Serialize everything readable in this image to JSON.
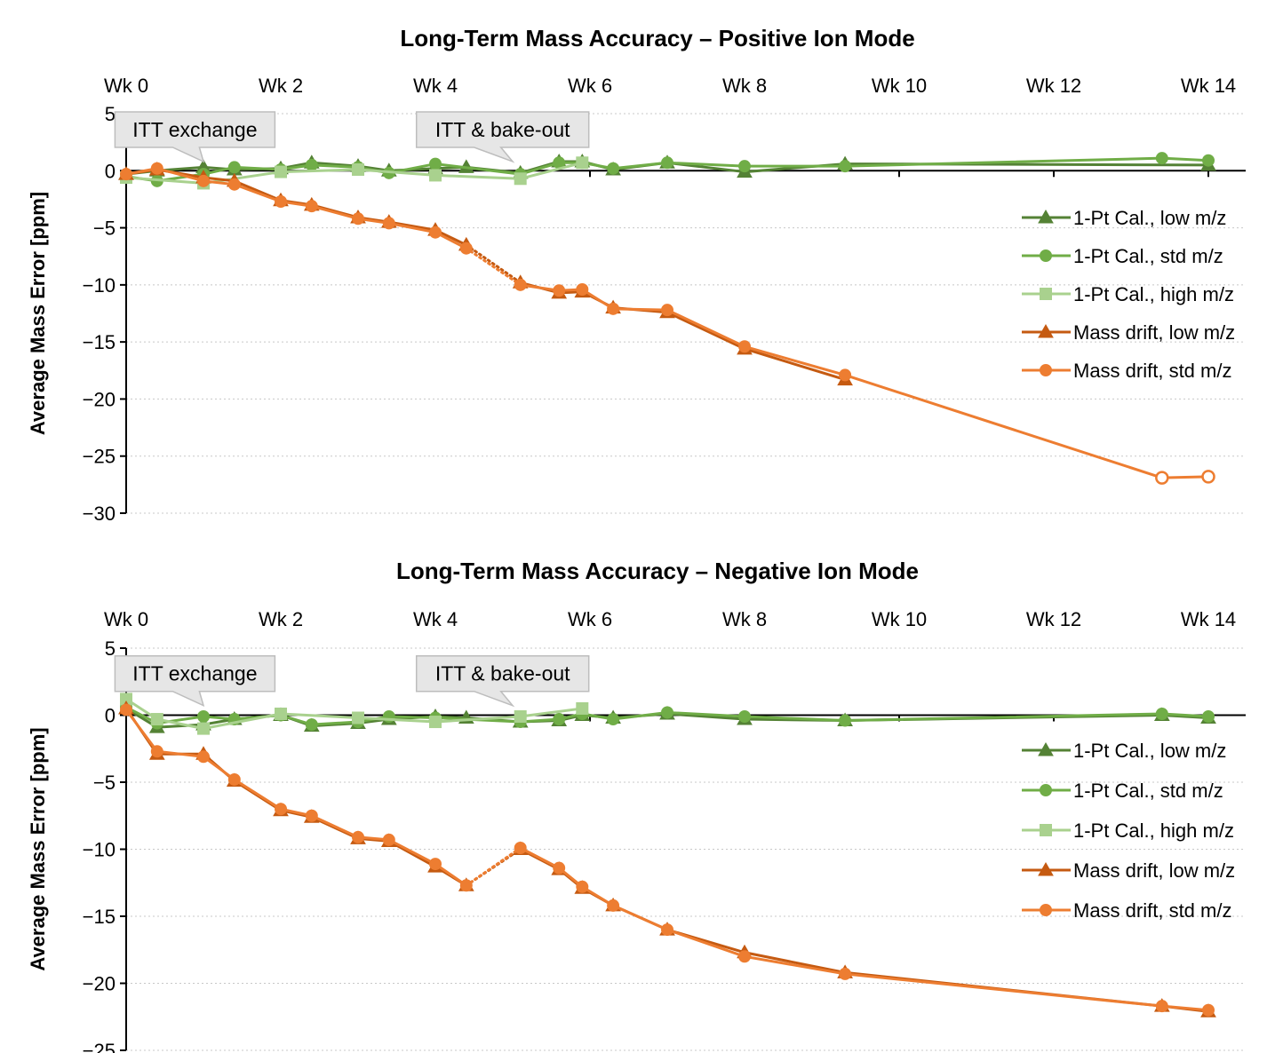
{
  "chart_data": [
    {
      "type": "line",
      "title": "Long-Term Mass Accuracy – Positive Ion Mode",
      "xlabel": "",
      "ylabel": "Average Mass Error [ppm]",
      "xlim": [
        0,
        14.5
      ],
      "ylim": [
        -30,
        5
      ],
      "x_ticks": [
        0,
        2,
        4,
        6,
        8,
        10,
        12,
        14
      ],
      "x_tick_labels": [
        "Wk 0",
        "Wk 2",
        "Wk 4",
        "Wk 6",
        "Wk 8",
        "Wk 10",
        "Wk 12",
        "Wk 14"
      ],
      "y_ticks": [
        5,
        0,
        -5,
        -10,
        -15,
        -20,
        -25,
        -30
      ],
      "y_tick_labels": [
        "5",
        "0",
        "−5",
        "−10",
        "−15",
        "−20",
        "−25",
        "−30"
      ],
      "grid": "horizontal dotted",
      "legend_position": "right",
      "annotations": [
        {
          "text": "ITT exchange",
          "x": 0.2,
          "y": 3.6,
          "pointer_x": 1.0
        },
        {
          "text": "ITT & bake-out",
          "x": 4.1,
          "y": 3.6,
          "pointer_x": 5.0
        }
      ],
      "series": [
        {
          "name": "1-Pt Cal., low m/z",
          "color": "#548235",
          "marker": "triangle",
          "x": [
            0,
            0.4,
            1.0,
            1.4,
            2.0,
            2.4,
            3.0,
            3.4,
            4.0,
            4.4,
            5.1,
            5.6,
            5.9,
            6.3,
            7.0,
            8.0,
            9.3,
            14.0
          ],
          "y": [
            -0.3,
            0.0,
            0.3,
            0.1,
            0.2,
            0.7,
            0.4,
            0.0,
            0.2,
            0.3,
            -0.2,
            0.8,
            0.8,
            0.1,
            0.7,
            -0.1,
            0.6,
            0.5
          ]
        },
        {
          "name": "1-Pt Cal., std m/z",
          "color": "#70AD47",
          "marker": "circle",
          "x": [
            0,
            0.4,
            1.0,
            1.4,
            2.0,
            2.4,
            3.0,
            3.4,
            4.0,
            5.1,
            5.6,
            5.9,
            6.3,
            7.0,
            8.0,
            9.3,
            13.4,
            14.0
          ],
          "y": [
            -0.5,
            -0.9,
            -0.3,
            0.3,
            0.1,
            0.5,
            0.3,
            -0.2,
            0.6,
            -0.3,
            0.7,
            0.7,
            0.2,
            0.7,
            0.4,
            0.4,
            1.1,
            0.9
          ]
        },
        {
          "name": "1-Pt Cal., high m/z",
          "color": "#A9D18E",
          "marker": "square",
          "x": [
            0,
            1.0,
            2.0,
            3.0,
            4.0,
            5.1,
            5.9
          ],
          "y": [
            -0.6,
            -1.1,
            -0.1,
            0.1,
            -0.4,
            -0.7,
            0.7
          ]
        },
        {
          "name": "Mass drift, low m/z",
          "color": "#C55A11",
          "marker": "triangle",
          "x": [
            0,
            0.4,
            1.0,
            1.4,
            2.0,
            2.4,
            3.0,
            3.4,
            4.0,
            4.4,
            5.1,
            5.6,
            5.9,
            6.3,
            7.0,
            8.0,
            9.3
          ],
          "y": [
            -0.3,
            0.1,
            -0.6,
            -0.9,
            -2.6,
            -3.0,
            -4.1,
            -4.5,
            -5.2,
            -6.5,
            -9.8,
            -10.7,
            -10.6,
            -12.0,
            -12.4,
            -15.6,
            -18.3
          ],
          "dotted_gap_after_index": 9
        },
        {
          "name": "Mass drift, std m/z",
          "color": "#ED7D31",
          "marker": "circle",
          "x": [
            0,
            0.4,
            1.0,
            1.4,
            2.0,
            2.4,
            3.0,
            3.4,
            4.0,
            4.4,
            5.1,
            5.6,
            5.9,
            6.3,
            7.0,
            8.0,
            9.3,
            13.4,
            14.0
          ],
          "y": [
            -0.3,
            0.2,
            -0.9,
            -1.2,
            -2.7,
            -3.1,
            -4.2,
            -4.6,
            -5.4,
            -6.8,
            -10.0,
            -10.5,
            -10.4,
            -12.1,
            -12.2,
            -15.4,
            -17.9,
            -26.9,
            -26.8
          ],
          "dotted_gap_after_index": 9,
          "hollow_indices": [
            17,
            18
          ]
        }
      ]
    },
    {
      "type": "line",
      "title": "Long-Term Mass Accuracy – Negative Ion Mode",
      "xlabel": "",
      "ylabel": "Average Mass Error [ppm]",
      "xlim": [
        0,
        14.5
      ],
      "ylim": [
        -25,
        5
      ],
      "x_ticks": [
        0,
        2,
        4,
        6,
        8,
        10,
        12,
        14
      ],
      "x_tick_labels": [
        "Wk 0",
        "Wk 2",
        "Wk 4",
        "Wk 6",
        "Wk 8",
        "Wk 10",
        "Wk 12",
        "Wk 14"
      ],
      "y_ticks": [
        5,
        0,
        -5,
        -10,
        -15,
        -20,
        -25
      ],
      "y_tick_labels": [
        "5",
        "0",
        "−5",
        "−10",
        "−15",
        "−20",
        "−25"
      ],
      "grid": "horizontal dotted",
      "legend_position": "right",
      "annotations": [
        {
          "text": "ITT exchange",
          "x": 0.2,
          "y": 3.1,
          "pointer_x": 1.0
        },
        {
          "text": "ITT & bake-out",
          "x": 4.1,
          "y": 3.1,
          "pointer_x": 5.0
        }
      ],
      "series": [
        {
          "name": "1-Pt Cal., low m/z",
          "color": "#548235",
          "marker": "triangle",
          "x": [
            0,
            0.4,
            1.0,
            1.4,
            2.0,
            2.4,
            3.0,
            3.4,
            4.0,
            4.4,
            5.1,
            5.6,
            5.9,
            6.3,
            7.0,
            8.0,
            9.3,
            13.4,
            14.0
          ],
          "y": [
            0.5,
            -0.9,
            -0.7,
            -0.3,
            0.0,
            -0.8,
            -0.6,
            -0.3,
            -0.1,
            -0.2,
            -0.5,
            -0.4,
            0.0,
            -0.2,
            0.1,
            -0.3,
            -0.4,
            0.0,
            -0.2
          ]
        },
        {
          "name": "1-Pt Cal., std m/z",
          "color": "#70AD47",
          "marker": "circle",
          "x": [
            0,
            0.4,
            1.0,
            1.4,
            2.0,
            2.4,
            3.0,
            3.4,
            4.0,
            5.1,
            5.6,
            5.9,
            6.3,
            7.0,
            8.0,
            9.3,
            13.4,
            14.0
          ],
          "y": [
            0.6,
            -0.6,
            -0.1,
            -0.3,
            0.0,
            -0.7,
            -0.5,
            -0.1,
            -0.2,
            -0.5,
            -0.3,
            0.1,
            -0.3,
            0.2,
            -0.1,
            -0.4,
            0.1,
            -0.1
          ]
        },
        {
          "name": "1-Pt Cal., high m/z",
          "color": "#A9D18E",
          "marker": "square",
          "x": [
            0,
            0.4,
            1.0,
            2.0,
            3.0,
            4.0,
            5.1,
            5.9
          ],
          "y": [
            1.2,
            -0.3,
            -1.0,
            0.1,
            -0.2,
            -0.5,
            -0.1,
            0.5
          ]
        },
        {
          "name": "Mass drift, low m/z",
          "color": "#C55A11",
          "marker": "triangle",
          "x": [
            0,
            0.4,
            1.0,
            1.4,
            2.0,
            2.4,
            3.0,
            3.4,
            4.0,
            4.4,
            5.1,
            5.6,
            5.9,
            6.3,
            7.0,
            8.0,
            9.3,
            13.4,
            14.0
          ],
          "y": [
            0.5,
            -2.9,
            -2.9,
            -4.9,
            -7.1,
            -7.6,
            -9.2,
            -9.4,
            -11.3,
            -12.7,
            -10.0,
            -11.5,
            -12.9,
            -14.2,
            -16.0,
            -17.7,
            -19.2,
            -21.7,
            -22.1
          ],
          "dotted_gap_after_index": 9
        },
        {
          "name": "Mass drift, std m/z",
          "color": "#ED7D31",
          "marker": "circle",
          "x": [
            0,
            0.4,
            1.0,
            1.4,
            2.0,
            2.4,
            3.0,
            3.4,
            4.0,
            4.4,
            5.1,
            5.6,
            5.9,
            6.3,
            7.0,
            8.0,
            9.3,
            13.4,
            14.0
          ],
          "y": [
            0.4,
            -2.7,
            -3.1,
            -4.8,
            -7.0,
            -7.5,
            -9.1,
            -9.3,
            -11.1,
            -12.7,
            -9.9,
            -11.4,
            -12.8,
            -14.2,
            -16.0,
            -18.0,
            -19.3,
            -21.7,
            -22.0
          ],
          "dotted_gap_after_index": 9
        }
      ]
    }
  ]
}
